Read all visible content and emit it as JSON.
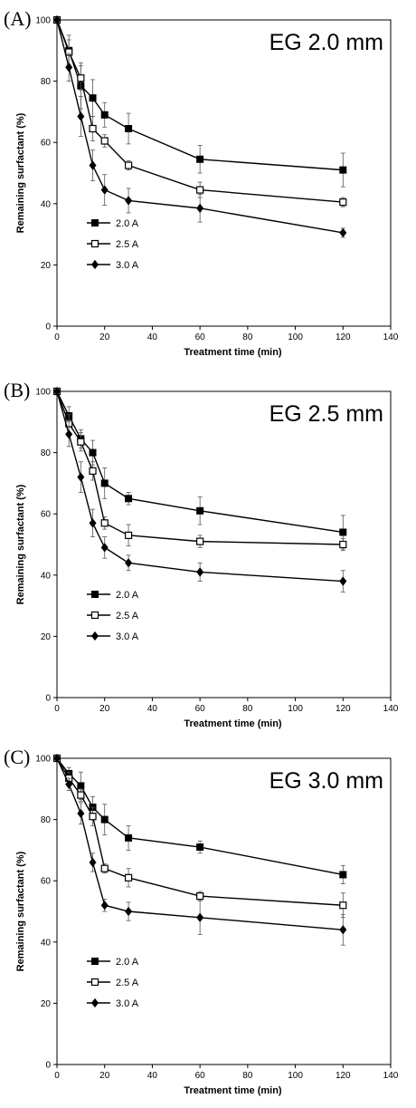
{
  "chart_data": [
    {
      "type": "line",
      "panel_label": "(A)",
      "title": "EG 2.0 mm",
      "xlabel": "Treatment time (min)",
      "ylabel": "Remaining surfactant (%)",
      "xlim": [
        0,
        140
      ],
      "ylim": [
        0,
        100
      ],
      "xticks": [
        0,
        20,
        40,
        60,
        80,
        100,
        120,
        140
      ],
      "yticks": [
        0,
        20,
        40,
        60,
        80,
        100
      ],
      "grid": false,
      "legend_position": "lower-left",
      "x": [
        0,
        5,
        10,
        15,
        20,
        30,
        60,
        120
      ],
      "series": [
        {
          "name": "2.0 A",
          "marker": "filled-square",
          "values": [
            100,
            90,
            78.5,
            74.5,
            69,
            64.5,
            54.5,
            51
          ],
          "errors": [
            0,
            5,
            7.5,
            6,
            4,
            5,
            4.5,
            5.5
          ]
        },
        {
          "name": "2.5 A",
          "marker": "open-square",
          "values": [
            100,
            89.5,
            81,
            64.5,
            60.5,
            52.5,
            44.5,
            40.5
          ],
          "errors": [
            0,
            4,
            4,
            4,
            2,
            1.5,
            2.5,
            1.5
          ]
        },
        {
          "name": "3.0 A",
          "marker": "filled-diamond",
          "values": [
            100,
            84.5,
            68.5,
            52.5,
            44.5,
            41,
            38.5,
            30.5
          ],
          "errors": [
            0,
            4.5,
            6.5,
            5,
            5,
            4,
            4.5,
            1.5
          ]
        }
      ]
    },
    {
      "type": "line",
      "panel_label": "(B)",
      "title": "EG 2.5 mm",
      "xlabel": "Treatment time (min)",
      "ylabel": "Remaining surfactant (%)",
      "xlim": [
        0,
        140
      ],
      "ylim": [
        0,
        100
      ],
      "xticks": [
        0,
        20,
        40,
        60,
        80,
        100,
        120,
        140
      ],
      "yticks": [
        0,
        20,
        40,
        60,
        80,
        100
      ],
      "grid": false,
      "legend_position": "lower-left",
      "x": [
        0,
        5,
        10,
        15,
        20,
        30,
        60,
        120
      ],
      "series": [
        {
          "name": "2.0 A",
          "marker": "filled-square",
          "values": [
            100,
            92,
            84.5,
            80,
            70,
            65,
            61,
            54
          ],
          "errors": [
            0,
            3,
            3,
            4,
            5,
            2,
            4.5,
            5.5
          ]
        },
        {
          "name": "2.5 A",
          "marker": "open-square",
          "values": [
            100,
            89.5,
            83.5,
            74,
            57,
            53,
            51,
            50
          ],
          "errors": [
            0,
            3,
            3,
            3,
            2,
            3.5,
            2,
            2
          ]
        },
        {
          "name": "3.0 A",
          "marker": "filled-diamond",
          "values": [
            100,
            86,
            72,
            57,
            49,
            44,
            41,
            38
          ],
          "errors": [
            0,
            4,
            5,
            4.5,
            3.5,
            2.5,
            3,
            3.5
          ]
        }
      ]
    },
    {
      "type": "line",
      "panel_label": "(C)",
      "title": "EG 3.0 mm",
      "xlabel": "Treatment time (min)",
      "ylabel": "Remaining surfactant (%)",
      "xlim": [
        0,
        140
      ],
      "ylim": [
        0,
        100
      ],
      "xticks": [
        0,
        20,
        40,
        60,
        80,
        100,
        120,
        140
      ],
      "yticks": [
        0,
        20,
        40,
        60,
        80,
        100
      ],
      "grid": false,
      "legend_position": "lower-left",
      "x": [
        0,
        5,
        10,
        15,
        20,
        30,
        60,
        120
      ],
      "series": [
        {
          "name": "2.0 A",
          "marker": "filled-square",
          "values": [
            100,
            95,
            91,
            84,
            80,
            74,
            71,
            62
          ],
          "errors": [
            0,
            2,
            4.5,
            3.5,
            5,
            4,
            2,
            3
          ]
        },
        {
          "name": "2.5 A",
          "marker": "open-square",
          "values": [
            100,
            93.5,
            88,
            81,
            64,
            61,
            55,
            52
          ],
          "errors": [
            0,
            2,
            2,
            3,
            1.5,
            3,
            1.5,
            4
          ]
        },
        {
          "name": "3.0 A",
          "marker": "filled-diamond",
          "values": [
            100,
            91.5,
            82,
            66,
            52,
            50,
            48,
            44
          ],
          "errors": [
            0,
            2,
            3.5,
            3,
            2,
            3,
            5.5,
            5
          ]
        }
      ]
    }
  ]
}
